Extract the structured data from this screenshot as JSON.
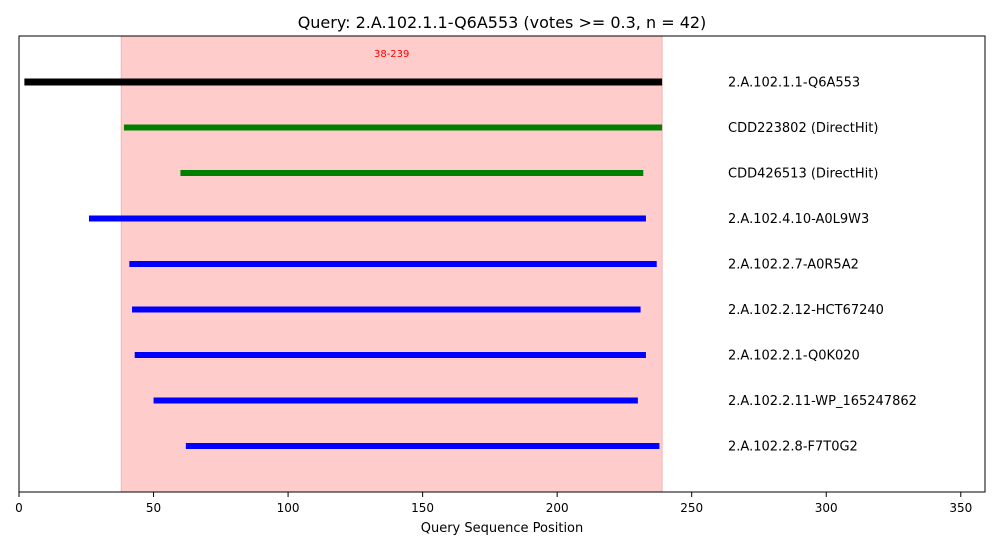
{
  "chart_data": {
    "type": "range-bar",
    "title": "Query: 2.A.102.1.1-Q6A553 (votes >= 0.3, n = 42)",
    "xlabel": "Query Sequence Position",
    "xlim": [
      0,
      359
    ],
    "xticks": [
      0,
      50,
      100,
      150,
      200,
      250,
      300,
      350
    ],
    "grid": false,
    "highlight": {
      "start": 38,
      "end": 239,
      "label": "38-239",
      "color": "#ffcccc",
      "label_color": "#ff0000"
    },
    "rows": [
      {
        "label": "2.A.102.1.1-Q6A553",
        "start": 2,
        "end": 239,
        "color": "#000000"
      },
      {
        "label": "CDD223802 (DirectHit)",
        "start": 39,
        "end": 239,
        "color": "#008000"
      },
      {
        "label": "CDD426513 (DirectHit)",
        "start": 60,
        "end": 232,
        "color": "#008000"
      },
      {
        "label": "2.A.102.4.10-A0L9W3",
        "start": 26,
        "end": 233,
        "color": "#0000ff"
      },
      {
        "label": "2.A.102.2.7-A0R5A2",
        "start": 41,
        "end": 237,
        "color": "#0000ff"
      },
      {
        "label": "2.A.102.2.12-HCT67240",
        "start": 42,
        "end": 231,
        "color": "#0000ff"
      },
      {
        "label": "2.A.102.2.1-Q0K020",
        "start": 43,
        "end": 233,
        "color": "#0000ff"
      },
      {
        "label": "2.A.102.2.11-WP_165247862",
        "start": 50,
        "end": 230,
        "color": "#0000ff"
      },
      {
        "label": "2.A.102.2.8-F7T0G2",
        "start": 62,
        "end": 238,
        "color": "#0000ff"
      }
    ]
  }
}
